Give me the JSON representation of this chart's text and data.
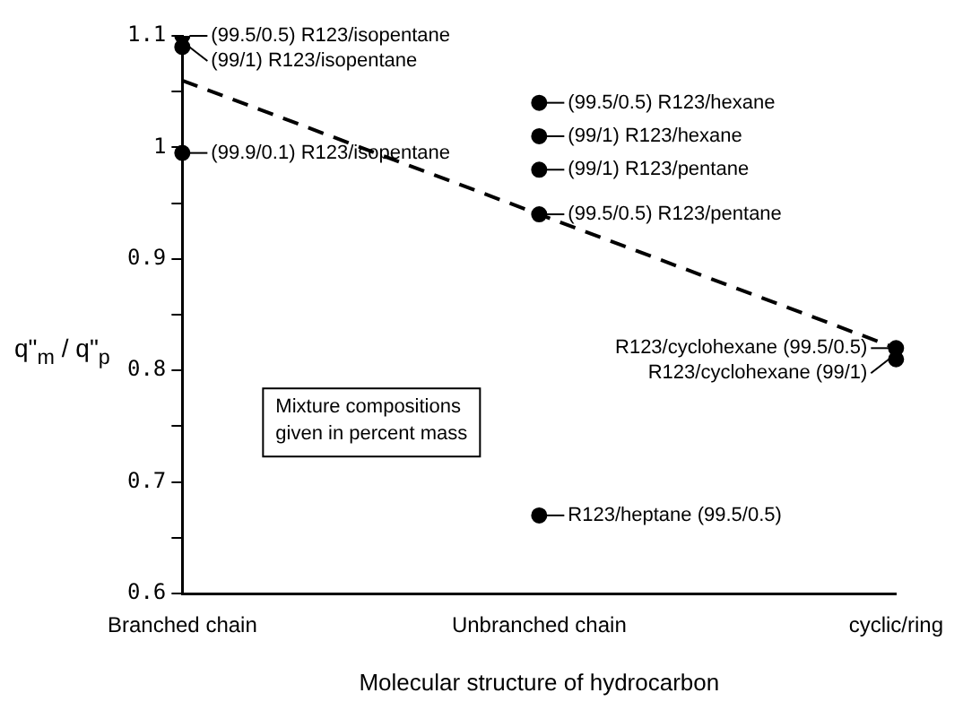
{
  "chart_data": {
    "type": "scatter",
    "xlabel": "Molecular structure of hydrocarbon",
    "ylabel": "q\"$_{m}$ / q\"$_{p}$",
    "categories": [
      "Branched chain",
      "Unbranched chain",
      "cyclic/ring"
    ],
    "series": [
      {
        "color": "#000000",
        "marker": "circle",
        "x": [
          "Branched chain",
          "Branched chain",
          "Branched chain",
          "Unbranched chain",
          "Unbranched chain",
          "Unbranched chain",
          "Unbranched chain",
          "Unbranched chain",
          "cyclic/ring",
          "cyclic/ring"
        ],
        "values": [
          1.1,
          1.09,
          0.995,
          1.04,
          1.01,
          0.98,
          0.94,
          0.67,
          0.82,
          0.81
        ]
      },
      {
        "type": "line",
        "color": "#000000",
        "marker": "none",
        "line_style": "dashed",
        "x": [
          "Branched chain",
          "Unbranched chain",
          "cyclic/ring"
        ],
        "values": [
          1.06,
          0.94,
          0.82
        ]
      }
    ],
    "ylim": [
      0.6,
      1.1
    ],
    "yticks": [
      0.6,
      {
        "value": 0.65,
        "label": null
      },
      0.7,
      {
        "value": 0.75,
        "label": null
      },
      0.8,
      {
        "value": 0.85,
        "label": null
      },
      0.9,
      {
        "value": 0.95,
        "label": null
      },
      {
        "value": 1,
        "label": "1"
      },
      {
        "value": 1.05,
        "label": null
      },
      1.1
    ],
    "grid": false,
    "legend": false,
    "annotations": [
      {
        "text": "(99.5/0.5) R123/isopentane",
        "x": "Branched chain",
        "y": 1.1
      },
      {
        "text": "(99/1) R123/isopentane",
        "x": "Branched chain",
        "y": 1.09
      },
      {
        "text": "(99.9/0.1) R123/isopentane",
        "x": "Branched chain",
        "y": 0.995
      },
      {
        "text": "(99.5/0.5) R123/hexane",
        "x": "Unbranched chain",
        "y": 1.04
      },
      {
        "text": "(99/1) R123/hexane",
        "x": "Unbranched chain",
        "y": 1.01
      },
      {
        "text": "(99/1) R123/pentane",
        "x": "Unbranched chain",
        "y": 0.98
      },
      {
        "text": "(99.5/0.5) R123/pentane",
        "x": "Unbranched chain",
        "y": 0.94
      },
      {
        "text": "R123/heptane (99.5/0.5)",
        "x": "Unbranched chain",
        "y": 0.67
      },
      {
        "text": "R123/cyclohexane (99.5/0.5)",
        "x": "cyclic/ring",
        "y": 0.82
      },
      {
        "text": "R123/cyclohexane (99/1)",
        "x": "cyclic/ring",
        "y": 0.81
      },
      "Mixture compositions given in percent mass"
    ]
  }
}
